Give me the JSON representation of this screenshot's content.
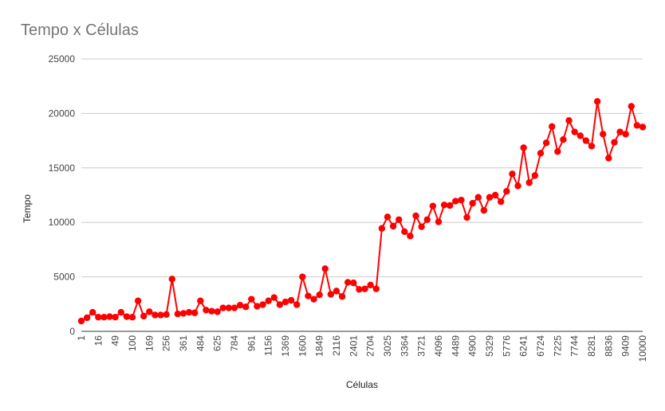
{
  "chart_data": {
    "type": "line",
    "title": "Tempo x Células",
    "xlabel": "Células",
    "ylabel": "Tempo",
    "ylim": [
      0,
      25000
    ],
    "yticks": [
      "0",
      "5000",
      "10000",
      "15000",
      "20000",
      "25000"
    ],
    "grid": true,
    "legend": "none",
    "line_color": "#ff0000",
    "x_tick_labels": [
      "1",
      "16",
      "49",
      "100",
      "169",
      "256",
      "361",
      "484",
      "625",
      "784",
      "961",
      "1156",
      "1369",
      "1600",
      "1849",
      "2116",
      "2401",
      "2704",
      "3025",
      "3364",
      "3721",
      "4096",
      "4489",
      "4900",
      "5329",
      "5776",
      "6241",
      "6724",
      "7225",
      "7744",
      "8281",
      "8836",
      "9409",
      "10000"
    ],
    "values": [
      950,
      1250,
      1750,
      1300,
      1300,
      1350,
      1300,
      1750,
      1350,
      1300,
      2800,
      1400,
      1800,
      1500,
      1500,
      1550,
      4800,
      1600,
      1650,
      1750,
      1700,
      2800,
      1950,
      1850,
      1800,
      2150,
      2150,
      2150,
      2400,
      2250,
      2950,
      2300,
      2450,
      2800,
      3100,
      2450,
      2700,
      2850,
      2450,
      5000,
      3250,
      2950,
      3350,
      5750,
      3400,
      3700,
      3200,
      4500,
      4450,
      3850,
      3900,
      4250,
      3900,
      9450,
      10500,
      9650,
      10250,
      9150,
      8750,
      10600,
      9600,
      10250,
      11500,
      10050,
      11600,
      11550,
      11950,
      12050,
      10450,
      11750,
      12300,
      11100,
      12300,
      12500,
      11900,
      12850,
      14450,
      13350,
      16850,
      13650,
      14300,
      16350,
      17300,
      18800,
      16500,
      17600,
      19350,
      18300,
      17950,
      17500,
      17000,
      21100,
      18100,
      15900,
      17350,
      18300,
      18100,
      20650,
      18900,
      18750
    ]
  }
}
